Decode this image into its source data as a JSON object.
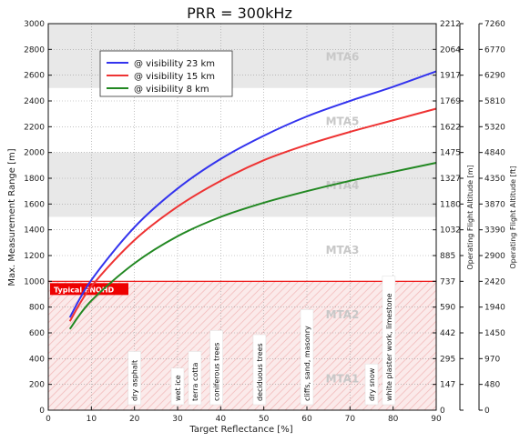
{
  "chart_data": {
    "type": "line",
    "title": "PRR = 300kHz",
    "xlabel": "Target Reflectance [%]",
    "ylabel": "Max. Measurement Range [m]",
    "ylabel_right1": "Operating Flight Altitude [m]",
    "ylabel_right2": "Operating Flight Altitude [ft]",
    "xlim": [
      0,
      90
    ],
    "ylim": [
      0,
      3000
    ],
    "x_ticks": [
      0,
      10,
      20,
      30,
      40,
      50,
      60,
      70,
      80,
      90
    ],
    "y_ticks": [
      0,
      200,
      400,
      600,
      800,
      1000,
      1200,
      1400,
      1600,
      1800,
      2000,
      2200,
      2400,
      2600,
      2800,
      3000
    ],
    "right1_ticks": [
      "0",
      "147",
      "295",
      "442",
      "590",
      "737",
      "885",
      "1032",
      "1180",
      "1327",
      "1475",
      "1622",
      "1769",
      "1917",
      "2064",
      "2212"
    ],
    "right2_ticks": [
      "0",
      "480",
      "970",
      "1450",
      "1940",
      "2420",
      "2900",
      "3390",
      "3870",
      "4350",
      "4840",
      "5320",
      "5810",
      "6290",
      "6770",
      "7260"
    ],
    "series": [
      {
        "name": "@ visibility 23 km",
        "color": "#3333ee",
        "x": [
          5,
          10,
          20,
          30,
          40,
          50,
          60,
          70,
          80,
          90
        ],
        "y": [
          720,
          1010,
          1420,
          1720,
          1950,
          2130,
          2280,
          2400,
          2510,
          2630
        ]
      },
      {
        "name": "@ visibility 15 km",
        "color": "#ee3333",
        "x": [
          5,
          10,
          20,
          30,
          40,
          50,
          60,
          70,
          80,
          90
        ],
        "y": [
          690,
          960,
          1320,
          1580,
          1780,
          1940,
          2060,
          2160,
          2250,
          2340
        ]
      },
      {
        "name": "@ visibility 8 km",
        "color": "#228822",
        "x": [
          5,
          10,
          20,
          30,
          40,
          50,
          60,
          70,
          80,
          90
        ],
        "y": [
          630,
          850,
          1140,
          1350,
          1500,
          1610,
          1700,
          1780,
          1850,
          1920
        ]
      }
    ],
    "zones": [
      {
        "label": "MTA6",
        "y0": 2500,
        "y1": 3000,
        "shade": "#e8e8e8"
      },
      {
        "label": "MTA5",
        "y0": 2000,
        "y1": 2500,
        "shade": "#ffffff"
      },
      {
        "label": "MTA4",
        "y0": 1500,
        "y1": 2000,
        "shade": "#e8e8e8"
      },
      {
        "label": "MTA3",
        "y0": 1000,
        "y1": 1500,
        "shade": "#ffffff"
      },
      {
        "label": "MTA2",
        "y0": 500,
        "y1": 1000,
        "shade": "hatch"
      },
      {
        "label": "MTA1",
        "y0": 0,
        "y1": 500,
        "shade": "hatch"
      }
    ],
    "enohd": {
      "label": "Typical ENOHD",
      "y": 1000,
      "color": "#ee0000"
    },
    "materials": [
      {
        "label": "dry asphalt",
        "x": 20
      },
      {
        "label": "wet ice",
        "x": 30
      },
      {
        "label": "terra cotta",
        "x": 34
      },
      {
        "label": "coniferous trees",
        "x": 39
      },
      {
        "label": "deciduous trees",
        "x": 49
      },
      {
        "label": "cliffs, sand, masonry",
        "x": 60
      },
      {
        "label": "dry snow",
        "x": 75
      },
      {
        "label": "white plaster work, limestone",
        "x": 79
      }
    ],
    "legend_position": "upper-left",
    "grid": true
  }
}
